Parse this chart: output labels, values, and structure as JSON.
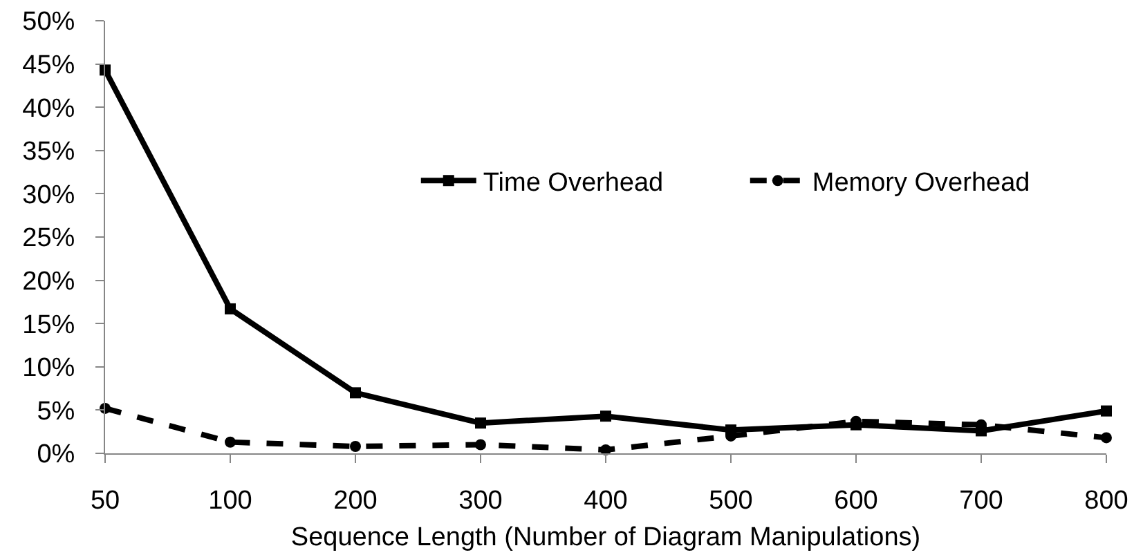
{
  "chart_data": {
    "type": "line",
    "xlabel": "Sequence Length (Number of Diagram Manipulations)",
    "categories": [
      "50",
      "100",
      "200",
      "300",
      "400",
      "500",
      "600",
      "700",
      "800"
    ],
    "series": [
      {
        "name": "Time Overhead",
        "color": "#000000",
        "marker": "square",
        "line_style": "solid",
        "values": [
          44.3,
          16.7,
          7.0,
          3.5,
          4.3,
          2.7,
          3.3,
          2.6,
          4.9
        ]
      },
      {
        "name": "Memory Overhead",
        "color": "#000000",
        "marker": "circle",
        "line_style": "dashed",
        "values": [
          5.2,
          1.3,
          0.8,
          1.0,
          0.4,
          2.0,
          3.7,
          3.3,
          1.8
        ]
      }
    ],
    "ylim": [
      0,
      50
    ],
    "yticks": [
      {
        "value": 0,
        "label": "0%"
      },
      {
        "value": 5,
        "label": "5%"
      },
      {
        "value": 10,
        "label": "10%"
      },
      {
        "value": 15,
        "label": "15%"
      },
      {
        "value": 20,
        "label": "20%"
      },
      {
        "value": 25,
        "label": "25%"
      },
      {
        "value": 30,
        "label": "30%"
      },
      {
        "value": 35,
        "label": "35%"
      },
      {
        "value": 40,
        "label": "40%"
      },
      {
        "value": 45,
        "label": "45%"
      },
      {
        "value": 50,
        "label": "50%"
      }
    ],
    "grid": false,
    "legend": "top right"
  }
}
